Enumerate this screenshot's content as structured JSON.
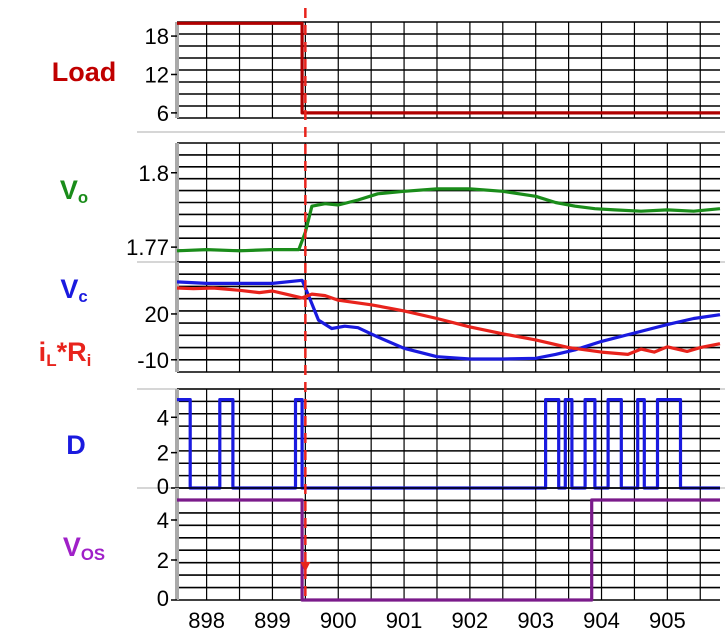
{
  "chart_data": {
    "type": "line",
    "x_axis": {
      "ticks": [
        898,
        899,
        900,
        901,
        902,
        903,
        904,
        905
      ],
      "tick_labels": [
        "898",
        "899",
        "900",
        "901",
        "902",
        "903",
        "904",
        "905"
      ],
      "range": [
        897.55,
        905.8
      ]
    },
    "event_marker": {
      "x": 899.5,
      "color": "#e8231c",
      "style": "dashed"
    },
    "panels": [
      {
        "id": "load",
        "label": "Load",
        "label_color": "#c00000",
        "yticks": [
          6,
          12,
          18
        ],
        "ytick_labels": [
          "6",
          "12",
          "18"
        ],
        "ylim": [
          5.2,
          20.2
        ],
        "series": [
          {
            "name": "Load",
            "color": "#b00000",
            "x": [
              897.55,
              899.45,
              899.45,
              905.8
            ],
            "y": [
              20.0,
              20.0,
              6.0,
              6.0
            ]
          }
        ]
      },
      {
        "id": "vo",
        "label": "Vo",
        "label_main": "V",
        "label_sub": "o",
        "label_color": "#1a8c1a",
        "yticks": [
          1.77,
          1.8
        ],
        "ytick_labels": [
          "1.77",
          "1.8"
        ],
        "ylim": [
          1.764,
          1.812
        ],
        "series": [
          {
            "name": "Vo",
            "color": "#1a8c1a",
            "x": [
              897.55,
              898.0,
              898.5,
              899.0,
              899.4,
              899.5,
              899.6,
              899.8,
              900.0,
              900.3,
              900.6,
              901.0,
              901.5,
              902.0,
              902.5,
              903.0,
              903.3,
              903.6,
              903.9,
              904.2,
              904.6,
              905.0,
              905.4,
              905.8
            ],
            "y": [
              1.7685,
              1.769,
              1.7685,
              1.769,
              1.769,
              1.776,
              1.7865,
              1.7875,
              1.787,
              1.789,
              1.7915,
              1.7925,
              1.7935,
              1.7935,
              1.7925,
              1.7905,
              1.788,
              1.7865,
              1.7855,
              1.785,
              1.7845,
              1.785,
              1.7845,
              1.7855
            ]
          }
        ]
      },
      {
        "id": "vc",
        "label": "Vc",
        "label_main": "V",
        "label_sub": "c",
        "label_color": "#1a1adf",
        "label2": "iL*Ri",
        "label2_parts": [
          "i",
          "L",
          "*R",
          "i"
        ],
        "label2_color": "#e8231c",
        "yticks": [
          -10,
          20
        ],
        "ytick_labels": [
          "-10",
          "20"
        ],
        "ylim": [
          -18,
          54
        ],
        "series": [
          {
            "name": "Vc",
            "color": "#1a1adf",
            "x": [
              897.55,
              898.0,
              898.5,
              899.0,
              899.45,
              899.55,
              899.7,
              899.9,
              900.1,
              900.3,
              900.6,
              901.0,
              901.5,
              902.0,
              902.5,
              903.0,
              903.3,
              903.6,
              904.0,
              904.5,
              905.0,
              905.4,
              905.8
            ],
            "y": [
              41.0,
              40.0,
              40.0,
              40.0,
              42.0,
              32.0,
              16.0,
              10.5,
              12.0,
              11.0,
              5.0,
              -2.5,
              -8.0,
              -9.5,
              -9.5,
              -9.0,
              -6.5,
              -3.5,
              2.0,
              7.5,
              13.0,
              17.0,
              19.5
            ]
          },
          {
            "name": "iL*Ri",
            "color": "#e8231c",
            "x": [
              897.55,
              897.8,
              898.1,
              898.5,
              898.8,
              899.0,
              899.2,
              899.45,
              899.6,
              899.8,
              900.0,
              900.5,
              901.0,
              901.5,
              902.0,
              902.5,
              903.0,
              903.5,
              904.0,
              904.4,
              904.6,
              904.8,
              905.0,
              905.3,
              905.5,
              905.8
            ],
            "y": [
              37.0,
              36.5,
              37.0,
              35.5,
              34.0,
              35.0,
              33.0,
              30.5,
              33.0,
              32.0,
              29.0,
              26.0,
              22.0,
              17.0,
              11.5,
              7.0,
              3.0,
              -2.0,
              -5.0,
              -6.5,
              -3.0,
              -5.0,
              -1.5,
              -4.5,
              -2.0,
              0.5
            ]
          }
        ]
      },
      {
        "id": "d",
        "label": "D",
        "label_color": "#1a1adf",
        "yticks": [
          0,
          2,
          4
        ],
        "ytick_labels": [
          "0",
          "2",
          "4"
        ],
        "ylim": [
          0,
          5.6
        ],
        "series": [
          {
            "name": "D",
            "color": "#1a1adf",
            "x": [
              897.55,
              897.65,
              897.65,
              897.75,
              897.75,
              898.2,
              898.2,
              898.4,
              898.4,
              899.35,
              899.35,
              899.45,
              899.45,
              903.15,
              903.15,
              903.35,
              903.35,
              903.45,
              903.45,
              903.55,
              903.55,
              903.75,
              903.75,
              903.9,
              903.9,
              904.1,
              904.1,
              904.3,
              904.3,
              904.55,
              904.55,
              904.65,
              904.65,
              904.85,
              904.85,
              905.2,
              905.2,
              905.8
            ],
            "y": [
              5,
              5,
              5,
              5,
              0,
              0,
              5,
              5,
              0,
              0,
              5,
              5,
              0,
              0,
              5,
              5,
              0,
              0,
              5,
              5,
              0,
              0,
              5,
              5,
              0,
              0,
              5,
              5,
              0,
              0,
              5,
              5,
              0,
              0,
              5,
              5,
              0,
              0
            ]
          }
        ]
      },
      {
        "id": "vos",
        "label": "VOS",
        "label_main": "V",
        "label_sub": "OS",
        "label_color": "#a020c8",
        "yticks": [
          0,
          2,
          4
        ],
        "ytick_labels": [
          "0",
          "2",
          "4"
        ],
        "ylim": [
          0,
          5.6
        ],
        "series": [
          {
            "name": "VOS",
            "color": "#7a1a8a",
            "x": [
              897.55,
              899.45,
              899.45,
              903.85,
              903.85,
              905.8
            ],
            "y": [
              5,
              5,
              0,
              0,
              5,
              5
            ]
          }
        ]
      }
    ]
  }
}
